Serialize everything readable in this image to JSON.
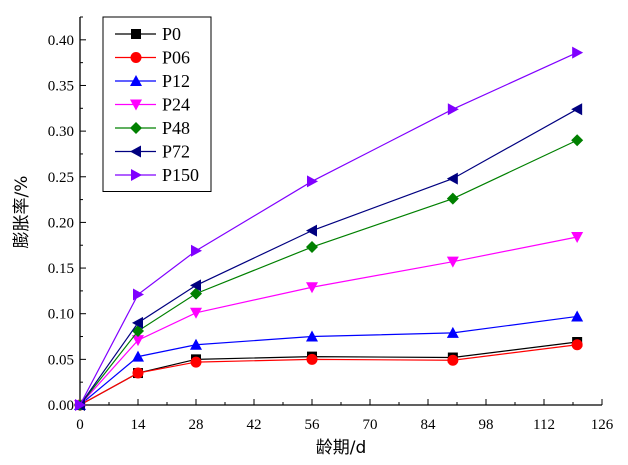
{
  "chart_data": {
    "type": "line",
    "title": "",
    "xlabel": "龄期/d",
    "ylabel": "膨胀率/%",
    "xlim": [
      0,
      126
    ],
    "ylim": [
      0,
      0.425
    ],
    "xticks": [
      0,
      14,
      28,
      42,
      56,
      70,
      84,
      98,
      112,
      126
    ],
    "xtick_labels": [
      "0",
      "14",
      "28",
      "42",
      "56",
      "70",
      "84",
      "98",
      "112",
      "126"
    ],
    "yticks": [
      0,
      0.05,
      0.1,
      0.15,
      0.2,
      0.25,
      0.3,
      0.35,
      0.4
    ],
    "ytick_labels": [
      "0.00",
      "0.05",
      "0.10",
      "0.15",
      "0.20",
      "0.25",
      "0.30",
      "0.35",
      "0.40"
    ],
    "grid": false,
    "legend_position": "top-left",
    "x": [
      0,
      14,
      28,
      56,
      90,
      120
    ],
    "series": [
      {
        "name": "P0",
        "color": "#000000",
        "marker": "square",
        "values": [
          0,
          0.035,
          0.05,
          0.053,
          0.052,
          0.069
        ]
      },
      {
        "name": "P06",
        "color": "#ff0000",
        "marker": "circle",
        "values": [
          0,
          0.035,
          0.047,
          0.05,
          0.049,
          0.066
        ]
      },
      {
        "name": "P12",
        "color": "#0000ff",
        "marker": "triangle-up",
        "values": [
          0,
          0.053,
          0.066,
          0.075,
          0.079,
          0.097
        ]
      },
      {
        "name": "P24",
        "color": "#ff00ff",
        "marker": "triangle-down",
        "values": [
          0,
          0.071,
          0.101,
          0.129,
          0.157,
          0.184
        ]
      },
      {
        "name": "P48",
        "color": "#008000",
        "marker": "diamond",
        "values": [
          0,
          0.081,
          0.122,
          0.173,
          0.226,
          0.29
        ]
      },
      {
        "name": "P72",
        "color": "#000080",
        "marker": "triangle-left",
        "values": [
          0,
          0.09,
          0.131,
          0.191,
          0.248,
          0.324
        ]
      },
      {
        "name": "P150",
        "color": "#8000ff",
        "marker": "triangle-right",
        "values": [
          0,
          0.121,
          0.169,
          0.245,
          0.324,
          0.386
        ]
      }
    ]
  }
}
